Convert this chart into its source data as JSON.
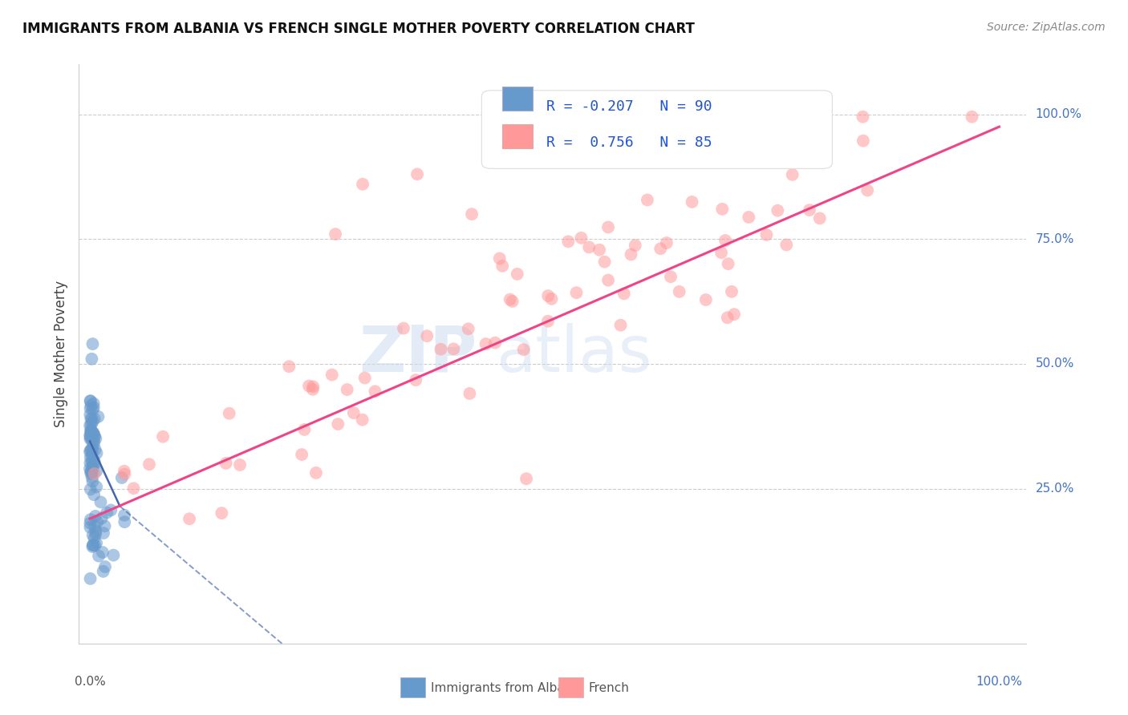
{
  "title": "IMMIGRANTS FROM ALBANIA VS FRENCH SINGLE MOTHER POVERTY CORRELATION CHART",
  "source": "Source: ZipAtlas.com",
  "ylabel": "Single Mother Poverty",
  "ylabel_right_labels": [
    "25.0%",
    "50.0%",
    "75.0%",
    "100.0%"
  ],
  "ylabel_right_values": [
    0.25,
    0.5,
    0.75,
    1.0
  ],
  "legend_albania": "Immigrants from Albania",
  "legend_french": "French",
  "r_albania": -0.207,
  "n_albania": 90,
  "r_french": 0.756,
  "n_french": 85,
  "blue_color": "#6699CC",
  "pink_color": "#FF9999",
  "blue_line_color": "#4466AA",
  "pink_line_color": "#EE4488",
  "xmin": 0.0,
  "xmax": 1.0,
  "ymin": 0.0,
  "ymax": 1.0
}
